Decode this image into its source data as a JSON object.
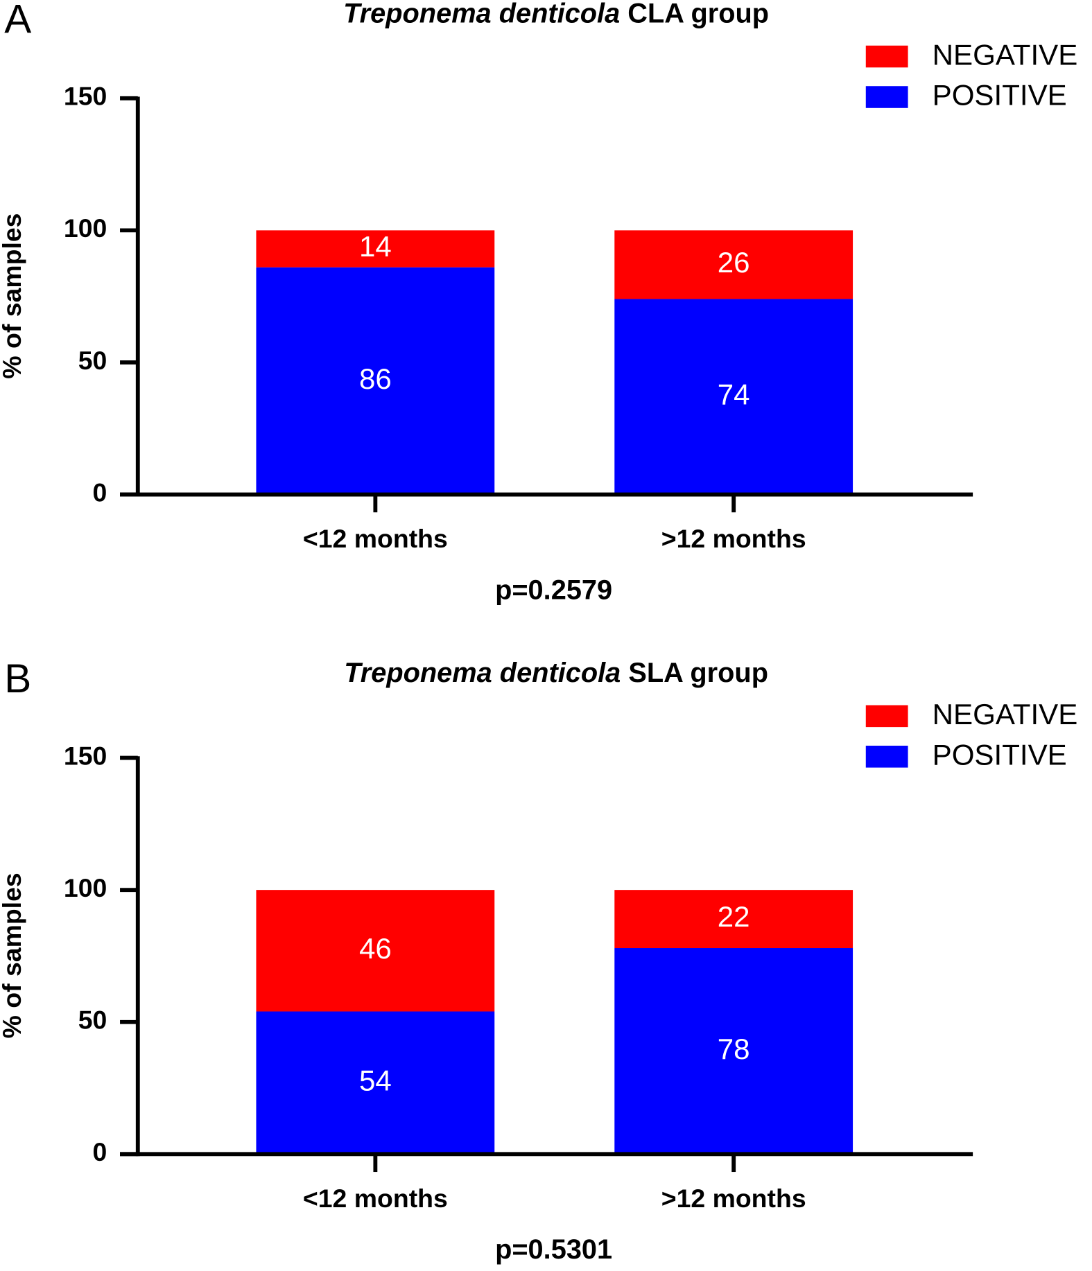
{
  "chart_data": [
    {
      "type": "bar",
      "stacked": true,
      "panel_label": "A",
      "title": {
        "italic": "Treponema denticola",
        "text": "CLA group"
      },
      "y_label": "% of samples",
      "annotation": "p=0.2579",
      "categories": [
        "<12 months",
        ">12 months"
      ],
      "series": [
        {
          "name": "POSITIVE",
          "color": "#0000ff",
          "values": [
            86,
            74
          ]
        },
        {
          "name": "NEGATIVE",
          "color": "#ff0000",
          "values": [
            14,
            26
          ]
        }
      ],
      "ylim": [
        0,
        150
      ],
      "yticks": [
        0,
        50,
        100,
        150
      ],
      "legend": "top-right"
    },
    {
      "type": "bar",
      "stacked": true,
      "panel_label": "B",
      "title": {
        "italic": "Treponema denticola",
        "text": "SLA group"
      },
      "y_label": "% of samples",
      "annotation": "p=0.5301",
      "categories": [
        "<12 months",
        ">12 months"
      ],
      "series": [
        {
          "name": "POSITIVE",
          "color": "#0000ff",
          "values": [
            54,
            78
          ]
        },
        {
          "name": "NEGATIVE",
          "color": "#ff0000",
          "values": [
            46,
            22
          ]
        }
      ],
      "ylim": [
        0,
        150
      ],
      "yticks": [
        0,
        50,
        100,
        150
      ],
      "legend": "top-right"
    }
  ]
}
